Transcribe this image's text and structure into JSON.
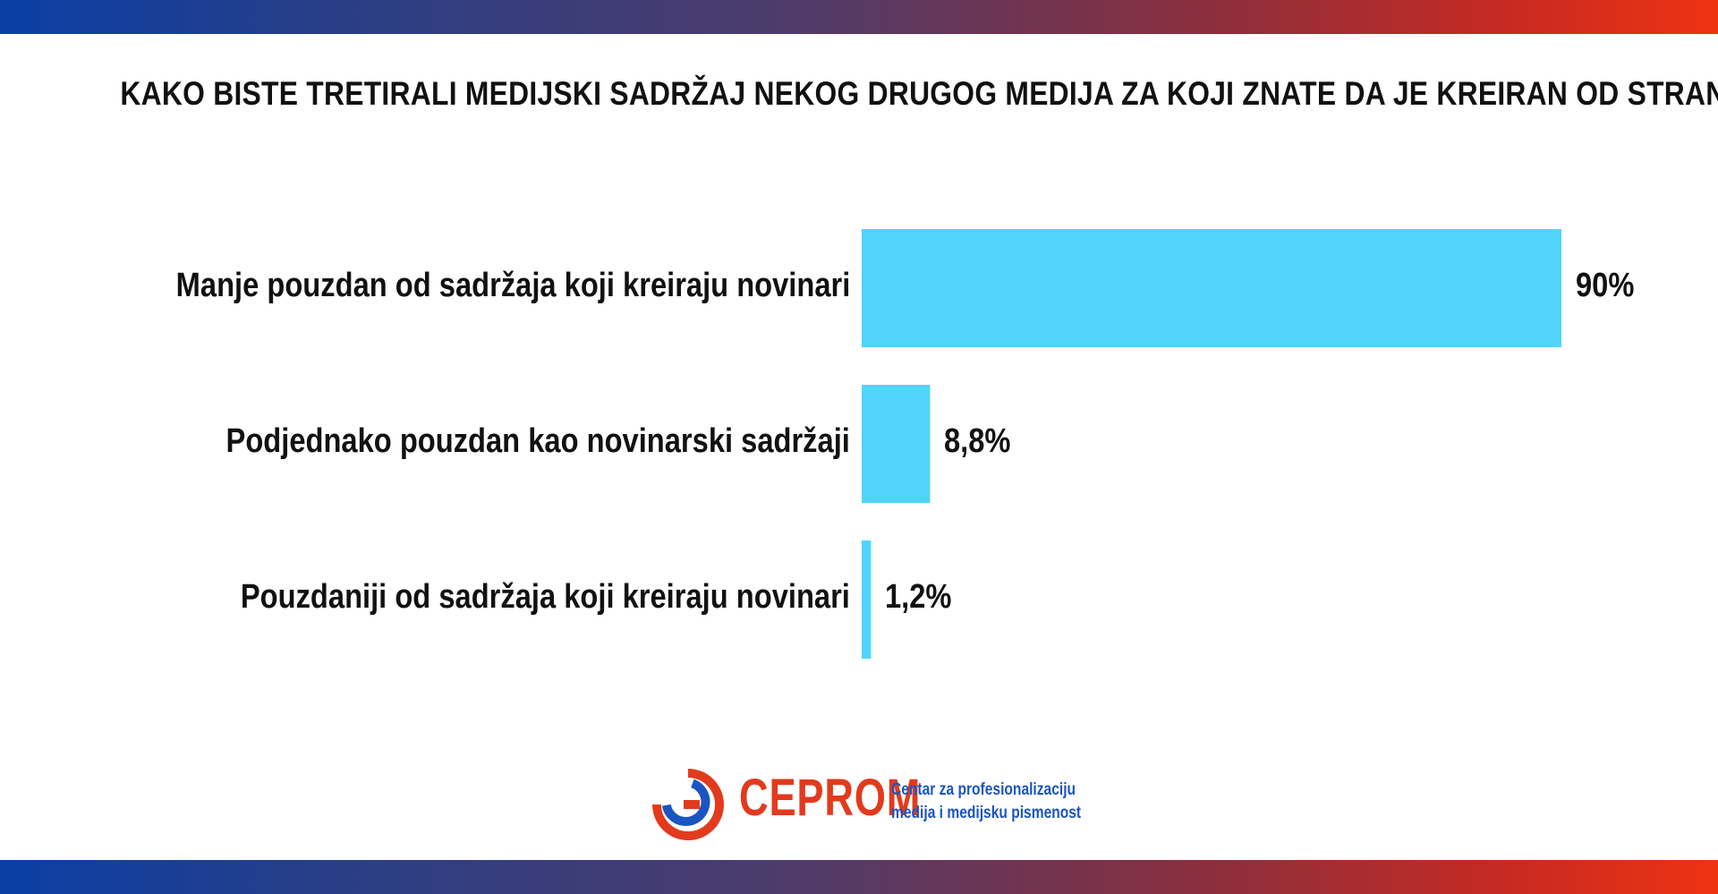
{
  "header": {
    "title": "KAKO BISTE TRETIRALI MEDIJSKI SADRŽAJ NEKOG DRUGOG MEDIJA ZA KOJI ZNATE DA JE KREIRAN OD STRANE VI?"
  },
  "chart_data": {
    "type": "bar",
    "orientation": "horizontal",
    "title": "KAKO BISTE TRETIRALI MEDIJSKI SADRŽAJ NEKOG DRUGOG MEDIJA ZA KOJI ZNATE DA JE KREIRAN OD STRANE VI?",
    "categories": [
      "Manje pouzdan od sadržaja koji kreiraju novinari",
      "Podjednako pouzdan kao novinarski sadržaji",
      "Pouzdaniji od sadržaja koji kreiraju novinari"
    ],
    "values": [
      90,
      8.8,
      1.2
    ],
    "value_labels": [
      "90%",
      "8,8%",
      "1,2%"
    ],
    "unit": "%",
    "xlim": [
      0,
      100
    ],
    "grid": false,
    "bar_color": "#50d4fc"
  },
  "footer": {
    "brand": "CEPROM",
    "tagline_line1": "Centar za profesionalizaciju",
    "tagline_line2": "medija i medijsku pismenost",
    "brand_color": "#e23a1d",
    "tagline_color": "#1a55c2",
    "logo_icon": "ceprom-ring-logo-icon"
  }
}
